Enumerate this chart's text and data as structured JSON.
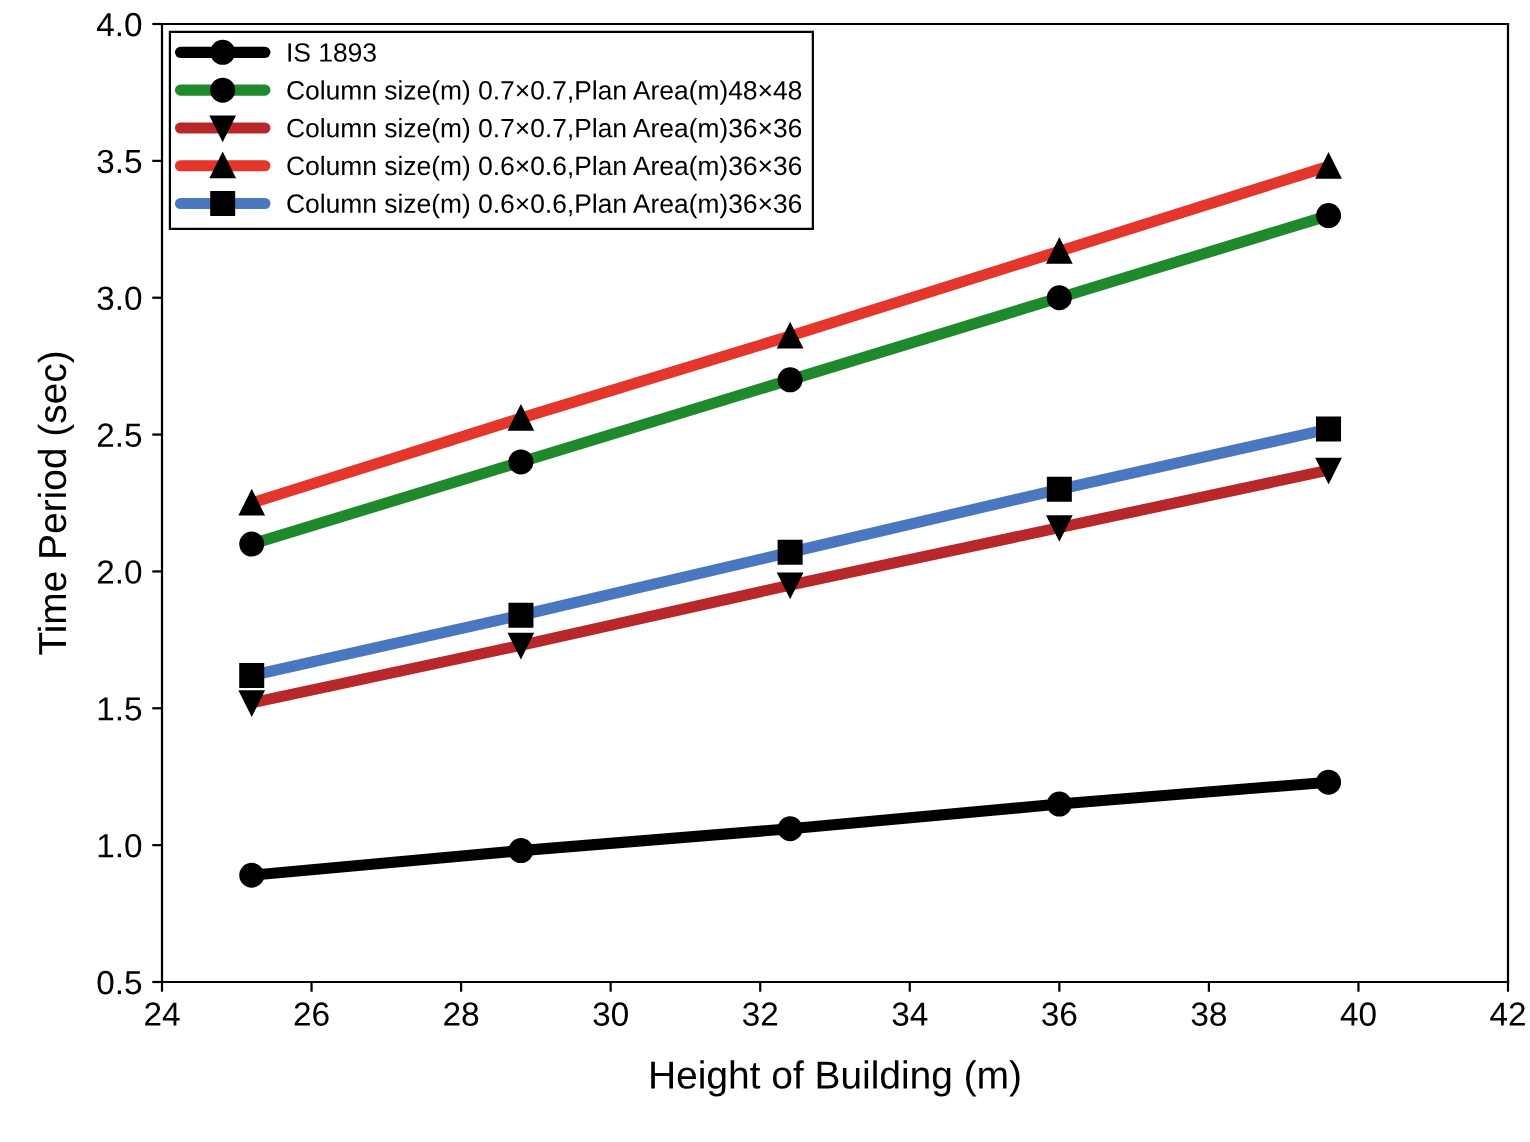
{
  "chart_data": {
    "type": "line",
    "xlabel": "Height of Building (m)",
    "ylabel": "Time Period (sec)",
    "x": [
      25.2,
      28.8,
      32.4,
      36.0,
      39.6
    ],
    "series": [
      {
        "name": "IS 1893",
        "color": "#000000",
        "marker": "circle",
        "values": [
          0.89,
          0.98,
          1.06,
          1.15,
          1.23
        ]
      },
      {
        "name": "Column size(m) 0.7×0.7,Plan Area(m)48×48",
        "color": "#1f8a2c",
        "marker": "circle",
        "values": [
          2.1,
          2.4,
          2.7,
          3.0,
          3.3
        ]
      },
      {
        "name": "Column size(m) 0.7×0.7,Plan Area(m)36×36",
        "color": "#b8282a",
        "marker": "triangle_down",
        "values": [
          1.52,
          1.73,
          1.95,
          2.16,
          2.37
        ]
      },
      {
        "name": "Column size(m) 0.6×0.6,Plan Area(m)36×36",
        "color": "#e5362c",
        "marker": "triangle",
        "values": [
          2.25,
          2.56,
          2.86,
          3.17,
          3.48
        ]
      },
      {
        "name": "Column size(m) 0.6×0.6,Plan Area(m)36×36",
        "color": "#4a78c0",
        "marker": "square",
        "values": [
          1.62,
          1.84,
          2.07,
          2.3,
          2.52
        ]
      }
    ],
    "xlim": [
      24,
      42
    ],
    "xticks": [
      24,
      26,
      28,
      30,
      32,
      34,
      36,
      38,
      40,
      42
    ],
    "ylim": [
      0.5,
      4.0
    ],
    "yticks": [
      {
        "value": 0.5,
        "label": "0.5"
      },
      {
        "value": 1.0,
        "label": "1.0"
      },
      {
        "value": 1.5,
        "label": "1.5"
      },
      {
        "value": 2.0,
        "label": "2.0"
      },
      {
        "value": 2.5,
        "label": "2.5"
      },
      {
        "value": 3.0,
        "label": "3.0"
      },
      {
        "value": 3.5,
        "label": "3.5"
      },
      {
        "value": 4.0,
        "label": "4.0"
      }
    ],
    "grid": false,
    "legend": "top left",
    "line_style": "solid"
  }
}
